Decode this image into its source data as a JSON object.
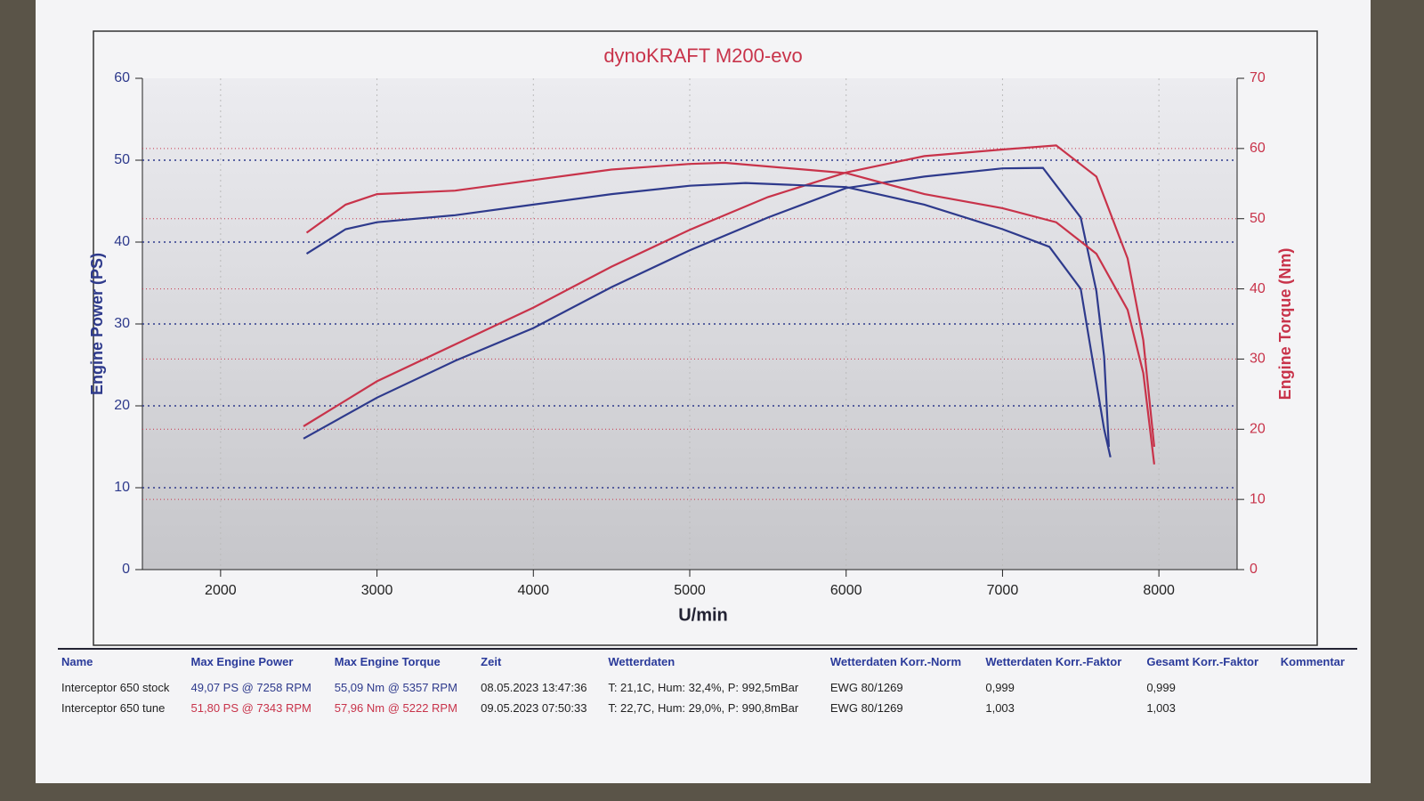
{
  "chart_data": {
    "type": "line",
    "title": "dynoKRAFT M200-evo",
    "x_label": "U/min",
    "y_label": "Engine Power (PS)",
    "y2_label": "Engine Torque (Nm)",
    "xlim": [
      1500,
      8500
    ],
    "xticks": [
      2000,
      3000,
      4000,
      5000,
      6000,
      7000,
      8000
    ],
    "ylim": [
      0,
      60
    ],
    "yticks": [
      0,
      10,
      20,
      30,
      40,
      50,
      60
    ],
    "y2lim": [
      0,
      70
    ],
    "y2ticks": [
      0,
      10,
      20,
      30,
      40,
      50,
      60,
      70
    ],
    "grid": true,
    "series": [
      {
        "color": "#2e3a8c",
        "axis": "y",
        "x": [
          2530,
          3000,
          3500,
          4000,
          4500,
          5000,
          5500,
          6000,
          6500,
          7000,
          7258,
          7500,
          7600,
          7650,
          7680
        ],
        "values": [
          16,
          21,
          25.5,
          29.5,
          34.5,
          39,
          43,
          46.6,
          48,
          49,
          49.07,
          43,
          34,
          26,
          15
        ]
      },
      {
        "color": "#c8334a",
        "axis": "y",
        "x": [
          2530,
          3000,
          3500,
          4000,
          4500,
          5000,
          5500,
          6000,
          6500,
          7000,
          7343,
          7600,
          7800,
          7900,
          7970
        ],
        "values": [
          17.5,
          23,
          27.5,
          32,
          37,
          41.5,
          45.5,
          48.5,
          50.5,
          51.3,
          51.8,
          48,
          38,
          28,
          15
        ]
      },
      {
        "color": "#2e3a8c",
        "axis": "y2",
        "x": [
          2550,
          2800,
          3000,
          3500,
          4000,
          4500,
          5000,
          5357,
          6000,
          6500,
          7000,
          7300,
          7500,
          7650,
          7690
        ],
        "values": [
          45,
          48.5,
          49.5,
          50.5,
          52,
          53.5,
          54.7,
          55.09,
          54.5,
          52,
          48.5,
          46,
          40,
          20,
          16
        ]
      },
      {
        "color": "#c8334a",
        "axis": "y2",
        "x": [
          2550,
          2800,
          3000,
          3500,
          4000,
          4500,
          5000,
          5222,
          6000,
          6500,
          7000,
          7343,
          7600,
          7800,
          7900,
          7970
        ],
        "values": [
          48,
          52,
          53.5,
          54,
          55.5,
          57,
          57.8,
          57.96,
          56.5,
          53.5,
          51.5,
          49.5,
          45,
          37,
          28,
          15
        ]
      }
    ]
  },
  "table": {
    "columns": [
      "Name",
      "Max Engine Power",
      "Max Engine Torque",
      "Zeit",
      "Wetterdaten",
      "Wetterdaten Korr.-Norm",
      "Wetterdaten Korr.-Faktor",
      "Gesamt Korr.-Faktor",
      "Kommentar"
    ],
    "rows": [
      [
        "Interceptor 650 stock",
        "49,07 PS @ 7258 RPM",
        "55,09 Nm @ 5357 RPM",
        "08.05.2023 13:47:36",
        "T: 21,1C, Hum: 32,4%, P: 992,5mBar",
        "EWG 80/1269",
        "0,999",
        "0,999"
      ],
      [
        "Interceptor 650 tune",
        "51,80 PS @ 7343 RPM",
        "57,96 Nm @ 5222 RPM",
        "09.05.2023 07:50:33",
        "T: 22,7C, Hum: 29,0%, P: 990,8mBar",
        "EWG 80/1269",
        "1,003",
        "1,003"
      ]
    ]
  }
}
